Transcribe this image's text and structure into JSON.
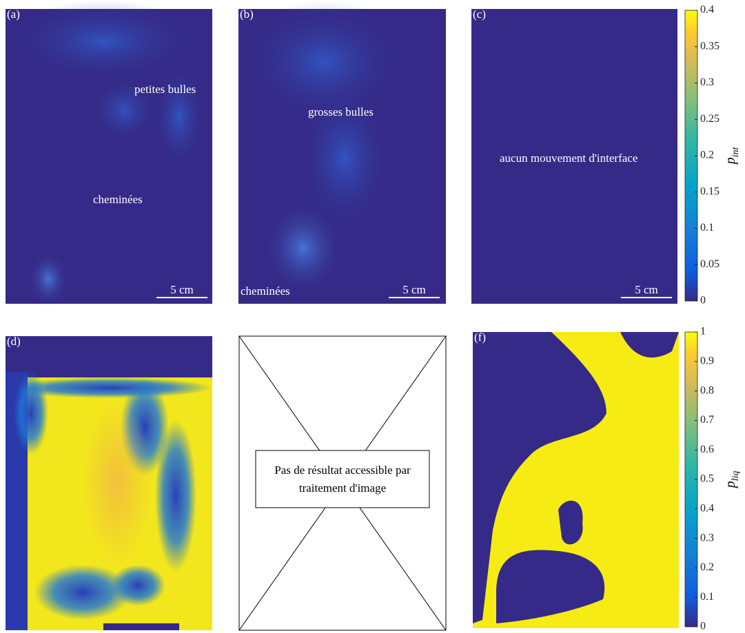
{
  "panels": [
    {
      "label": "(a)",
      "annotations": [
        "petites bulles",
        "cheminées"
      ],
      "scale_bar": "5 cm"
    },
    {
      "label": "(b)",
      "annotations": [
        "grosses bulles",
        "cheminées"
      ],
      "scale_bar": "5 cm"
    },
    {
      "label": "(c)",
      "annotations": [
        "aucun mouvement d'interface"
      ],
      "scale_bar": "5 cm"
    },
    {
      "label": "(d)"
    },
    {
      "note": [
        "Pas de résultat accessible par",
        "traitement d'image"
      ]
    },
    {
      "label": "(f)"
    }
  ],
  "colorbars": [
    {
      "symbol": "p",
      "subscript": "int",
      "lim": [
        0,
        0.4
      ],
      "ticks": [
        0,
        0.05,
        0.1,
        0.15,
        0.2,
        0.25,
        0.3,
        0.35,
        0.4
      ]
    },
    {
      "symbol": "p",
      "subscript": "liq",
      "lim": [
        0,
        1
      ],
      "ticks": [
        0,
        0.1,
        0.2,
        0.3,
        0.4,
        0.5,
        0.6,
        0.7,
        0.8,
        0.9,
        1
      ]
    }
  ]
}
